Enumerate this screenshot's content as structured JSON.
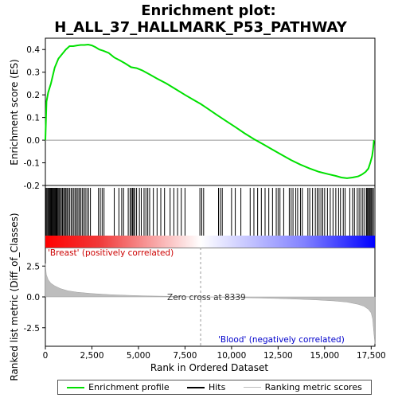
{
  "chart_data": {
    "type": "line",
    "title_line1": "Enrichment plot:",
    "title_line2": "H_ALL_37_HALLMARK_P53_PATHWAY",
    "xlabel": "Rank in Ordered Dataset",
    "ylabel_top": "Enrichment score (ES)",
    "ylabel_bottom": "Ranked list metric (Diff_of_Classes)",
    "xlim": [
      0,
      17700
    ],
    "es_ylim": [
      -0.2,
      0.45
    ],
    "metric_ylim": [
      -4,
      4
    ],
    "x_ticks": [
      0,
      2500,
      5000,
      7500,
      10000,
      12500,
      15000,
      17500
    ],
    "x_tick_labels": [
      "0",
      "2,500",
      "5,000",
      "7,500",
      "10,000",
      "12,500",
      "15,000",
      "17,500"
    ],
    "es_ticks": [
      -0.2,
      -0.1,
      0.0,
      0.1,
      0.2,
      0.3,
      0.4
    ],
    "es_tick_labels": [
      "-0.2",
      "-0.1",
      "0.0",
      "0.1",
      "0.2",
      "0.3",
      "0.4"
    ],
    "metric_ticks": [
      -2.5,
      0.0,
      2.5
    ],
    "metric_tick_labels": [
      "-2.5",
      "0.0",
      "2.5"
    ],
    "zero_cross_rank": 8339,
    "zero_cross_label": "Zero cross at 8339",
    "positive_label": "'Breast' (positively correlated)",
    "negative_label": "'Blood' (negatively correlated)",
    "es_curve": {
      "x": [
        0,
        60,
        150,
        300,
        500,
        700,
        900,
        1100,
        1300,
        1500,
        1700,
        1900,
        2100,
        2300,
        2500,
        2700,
        2900,
        3100,
        3400,
        3700,
        4000,
        4300,
        4600,
        4900,
        5200,
        5600,
        6000,
        6500,
        7000,
        7500,
        8000,
        8339,
        8700,
        9200,
        9700,
        10200,
        10700,
        11200,
        11700,
        12200,
        12700,
        13200,
        13700,
        14200,
        14700,
        15200,
        15600,
        15900,
        16200,
        16500,
        16800,
        17000,
        17200,
        17350,
        17450,
        17550,
        17600,
        17650
      ],
      "y": [
        0.0,
        0.17,
        0.21,
        0.25,
        0.32,
        0.36,
        0.38,
        0.4,
        0.415,
        0.415,
        0.418,
        0.42,
        0.42,
        0.422,
        0.418,
        0.41,
        0.4,
        0.395,
        0.385,
        0.365,
        0.352,
        0.338,
        0.322,
        0.318,
        0.308,
        0.29,
        0.272,
        0.25,
        0.225,
        0.2,
        0.176,
        0.16,
        0.14,
        0.112,
        0.085,
        0.058,
        0.03,
        0.005,
        -0.018,
        -0.042,
        -0.065,
        -0.088,
        -0.108,
        -0.125,
        -0.14,
        -0.15,
        -0.158,
        -0.165,
        -0.168,
        -0.165,
        -0.16,
        -0.152,
        -0.14,
        -0.125,
        -0.1,
        -0.07,
        -0.04,
        0.0
      ]
    },
    "hits": [
      40,
      90,
      140,
      190,
      230,
      280,
      320,
      360,
      400,
      440,
      480,
      520,
      560,
      600,
      640,
      690,
      740,
      800,
      860,
      920,
      980,
      1040,
      1100,
      1160,
      1220,
      1300,
      1380,
      1450,
      1530,
      1600,
      1680,
      1750,
      1820,
      1900,
      1980,
      2060,
      2140,
      2230,
      2320,
      2420,
      2850,
      2950,
      3050,
      3150,
      3700,
      3950,
      4100,
      4200,
      4450,
      4550,
      4620,
      4680,
      4740,
      4800,
      4900,
      5050,
      5150,
      5300,
      5400,
      5500,
      5600,
      5800,
      6000,
      6200,
      6400,
      6700,
      6900,
      7100,
      7300,
      7500,
      8300,
      8400,
      8500,
      9300,
      9400,
      9500,
      10000,
      10200,
      10500,
      11000,
      11200,
      11400,
      11600,
      11800,
      12000,
      12200,
      12400,
      12500,
      12600,
      12800,
      13100,
      13200,
      13300,
      13450,
      13550,
      13700,
      13800,
      14100,
      14200,
      14350,
      14500,
      14600,
      14700,
      14800,
      14900,
      15000,
      15150,
      15300,
      15450,
      15600,
      15750,
      15850,
      16000,
      16100,
      16350,
      16500,
      16600,
      16750,
      16850,
      16950,
      17050,
      17150,
      17250,
      17300,
      17350,
      17400,
      17450,
      17500,
      17560,
      17620
    ],
    "metric_profile": {
      "x": [
        0,
        50,
        150,
        300,
        500,
        800,
        1200,
        1700,
        2500,
        3500,
        4500,
        5500,
        6500,
        7500,
        8339,
        9500,
        10500,
        11500,
        12500,
        13500,
        14500,
        15500,
        16200,
        16800,
        17100,
        17350,
        17500,
        17580,
        17620,
        17660,
        17700
      ],
      "y": [
        2.7,
        1.8,
        1.4,
        1.1,
        0.9,
        0.68,
        0.5,
        0.38,
        0.27,
        0.18,
        0.12,
        0.08,
        0.05,
        0.02,
        0.0,
        -0.03,
        -0.06,
        -0.09,
        -0.13,
        -0.18,
        -0.24,
        -0.32,
        -0.42,
        -0.6,
        -0.75,
        -1.0,
        -1.3,
        -1.8,
        -2.5,
        -3.2,
        -3.8
      ]
    },
    "colors": {
      "es_line": "#00e000",
      "hit": "#000000",
      "metric_fill": "#bdbdbd",
      "positive": "#ff0000",
      "negative": "#0000ff",
      "zero_line": "#999999"
    }
  },
  "legend": {
    "items": [
      {
        "label": "Enrichment profile",
        "color": "#00e000",
        "width": 2
      },
      {
        "label": "Hits",
        "color": "#000000",
        "width": 2
      },
      {
        "label": "Ranking metric scores",
        "color": "#bdbdbd",
        "width": 1
      }
    ]
  }
}
